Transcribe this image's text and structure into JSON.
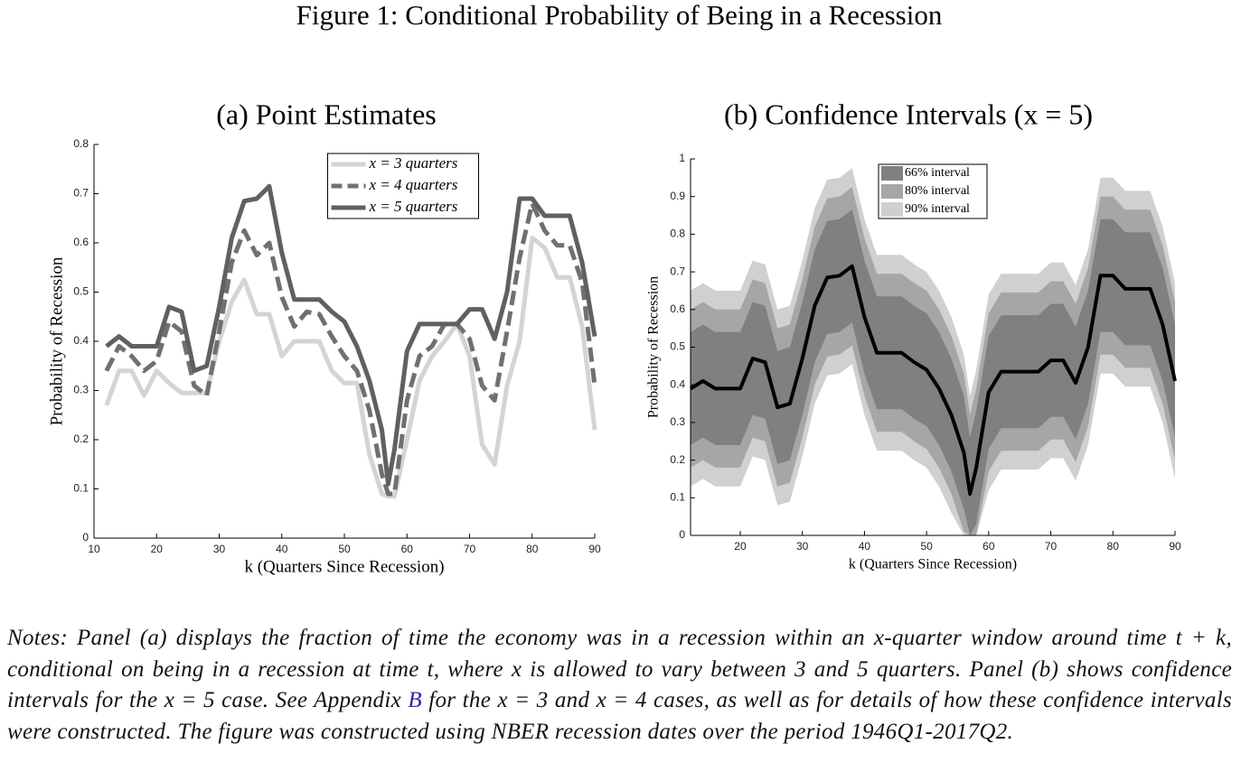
{
  "figure_title": "Figure 1: Conditional Probability of Being in a Recession",
  "chart_data": [
    {
      "type": "line",
      "title": "(a) Point Estimates",
      "xlabel": "k (Quarters Since Recession)",
      "ylabel": "Probability of Recession",
      "x": [
        12,
        14,
        16,
        18,
        20,
        22,
        24,
        26,
        28,
        30,
        32,
        34,
        36,
        38,
        40,
        42,
        44,
        46,
        48,
        50,
        52,
        54,
        56,
        57,
        58,
        60,
        62,
        64,
        66,
        68,
        70,
        72,
        74,
        76,
        78,
        80,
        82,
        84,
        86,
        88,
        90
      ],
      "xlim": [
        10,
        90
      ],
      "xticks": [
        10,
        20,
        30,
        40,
        50,
        60,
        70,
        80,
        90
      ],
      "ylim": [
        0,
        0.8
      ],
      "yticks": [
        0,
        0.1,
        0.2,
        0.3,
        0.4,
        0.5,
        0.6,
        0.7,
        0.8
      ],
      "legend": "upper center",
      "series": [
        {
          "name": "x = 3 quarters",
          "color": "#d4d4d4",
          "dashed": false,
          "values": [
            0.27,
            0.34,
            0.34,
            0.29,
            0.34,
            0.315,
            0.295,
            0.295,
            0.295,
            0.4,
            0.48,
            0.525,
            0.455,
            0.455,
            0.37,
            0.4,
            0.4,
            0.4,
            0.34,
            0.315,
            0.315,
            0.17,
            0.09,
            0.085,
            0.085,
            0.2,
            0.32,
            0.37,
            0.4,
            0.435,
            0.37,
            0.19,
            0.15,
            0.31,
            0.4,
            0.61,
            0.59,
            0.53,
            0.53,
            0.43,
            0.22
          ]
        },
        {
          "name": "x = 4 quarters",
          "color": "#707070",
          "dashed": true,
          "values": [
            0.34,
            0.39,
            0.37,
            0.34,
            0.36,
            0.44,
            0.42,
            0.31,
            0.29,
            0.42,
            0.56,
            0.625,
            0.575,
            0.6,
            0.49,
            0.43,
            0.46,
            0.455,
            0.41,
            0.37,
            0.34,
            0.26,
            0.13,
            0.09,
            0.09,
            0.28,
            0.37,
            0.39,
            0.435,
            0.435,
            0.405,
            0.31,
            0.28,
            0.42,
            0.57,
            0.68,
            0.625,
            0.595,
            0.595,
            0.52,
            0.31
          ]
        },
        {
          "name": "x = 5 quarters",
          "color": "#606060",
          "dashed": false,
          "values": [
            0.39,
            0.41,
            0.39,
            0.39,
            0.39,
            0.47,
            0.46,
            0.34,
            0.35,
            0.47,
            0.61,
            0.685,
            0.69,
            0.715,
            0.58,
            0.485,
            0.485,
            0.485,
            0.46,
            0.44,
            0.39,
            0.32,
            0.22,
            0.11,
            0.18,
            0.38,
            0.435,
            0.435,
            0.435,
            0.435,
            0.465,
            0.465,
            0.405,
            0.5,
            0.69,
            0.69,
            0.655,
            0.655,
            0.655,
            0.56,
            0.41
          ]
        }
      ]
    },
    {
      "type": "band",
      "title": "(b) Confidence Intervals (x = 5)",
      "xlabel": "k (Quarters Since Recession)",
      "ylabel": "Probability of Recession",
      "x": [
        12,
        14,
        16,
        18,
        20,
        22,
        24,
        26,
        28,
        30,
        32,
        34,
        36,
        38,
        40,
        42,
        44,
        46,
        48,
        50,
        52,
        54,
        56,
        57,
        58,
        60,
        62,
        64,
        66,
        68,
        70,
        72,
        74,
        76,
        78,
        80,
        82,
        84,
        86,
        88,
        90
      ],
      "xlim": [
        12,
        90
      ],
      "xticks": [
        20,
        30,
        40,
        50,
        60,
        70,
        80,
        90
      ],
      "ylim": [
        0,
        1
      ],
      "yticks": [
        0,
        0.1,
        0.2,
        0.3,
        0.4,
        0.5,
        0.6,
        0.7,
        0.8,
        0.9,
        1
      ],
      "legend": "upper left",
      "bands": [
        {
          "name": "66% interval",
          "color": "#808080",
          "lower": [
            0.24,
            0.26,
            0.24,
            0.24,
            0.24,
            0.32,
            0.31,
            0.19,
            0.2,
            0.32,
            0.46,
            0.535,
            0.54,
            0.565,
            0.43,
            0.335,
            0.335,
            0.335,
            0.31,
            0.29,
            0.24,
            0.17,
            0.07,
            0,
            0.03,
            0.23,
            0.285,
            0.285,
            0.285,
            0.285,
            0.315,
            0.315,
            0.255,
            0.35,
            0.54,
            0.54,
            0.505,
            0.505,
            0.505,
            0.41,
            0.26
          ],
          "upper": [
            0.54,
            0.56,
            0.54,
            0.54,
            0.54,
            0.62,
            0.61,
            0.49,
            0.5,
            0.62,
            0.76,
            0.835,
            0.84,
            0.865,
            0.73,
            0.635,
            0.635,
            0.635,
            0.61,
            0.59,
            0.54,
            0.47,
            0.37,
            0.26,
            0.33,
            0.53,
            0.585,
            0.585,
            0.585,
            0.585,
            0.615,
            0.615,
            0.555,
            0.65,
            0.84,
            0.84,
            0.805,
            0.805,
            0.805,
            0.71,
            0.56
          ]
        },
        {
          "name": "80% interval",
          "color": "#a6a6a6",
          "lower": [
            0.18,
            0.2,
            0.18,
            0.18,
            0.18,
            0.26,
            0.25,
            0.13,
            0.14,
            0.26,
            0.4,
            0.475,
            0.48,
            0.505,
            0.37,
            0.275,
            0.275,
            0.275,
            0.25,
            0.23,
            0.18,
            0.11,
            0.01,
            0,
            0,
            0.17,
            0.225,
            0.225,
            0.225,
            0.225,
            0.255,
            0.255,
            0.195,
            0.29,
            0.48,
            0.48,
            0.445,
            0.445,
            0.445,
            0.35,
            0.2
          ],
          "upper": [
            0.6,
            0.62,
            0.6,
            0.6,
            0.6,
            0.68,
            0.67,
            0.55,
            0.56,
            0.68,
            0.82,
            0.895,
            0.9,
            0.925,
            0.79,
            0.695,
            0.695,
            0.695,
            0.67,
            0.65,
            0.6,
            0.53,
            0.43,
            0.32,
            0.39,
            0.59,
            0.645,
            0.645,
            0.645,
            0.645,
            0.675,
            0.675,
            0.615,
            0.71,
            0.9,
            0.9,
            0.865,
            0.865,
            0.865,
            0.77,
            0.62
          ]
        },
        {
          "name": "90% interval",
          "color": "#d0d0d0",
          "lower": [
            0.13,
            0.15,
            0.13,
            0.13,
            0.13,
            0.21,
            0.2,
            0.08,
            0.09,
            0.21,
            0.35,
            0.425,
            0.43,
            0.455,
            0.32,
            0.225,
            0.225,
            0.225,
            0.2,
            0.18,
            0.13,
            0.06,
            0,
            0,
            0,
            0.12,
            0.175,
            0.175,
            0.175,
            0.175,
            0.205,
            0.205,
            0.145,
            0.24,
            0.43,
            0.43,
            0.395,
            0.395,
            0.395,
            0.3,
            0.15
          ],
          "upper": [
            0.65,
            0.67,
            0.65,
            0.65,
            0.65,
            0.73,
            0.72,
            0.6,
            0.61,
            0.73,
            0.87,
            0.945,
            0.95,
            0.975,
            0.84,
            0.745,
            0.745,
            0.745,
            0.72,
            0.7,
            0.65,
            0.58,
            0.48,
            0.37,
            0.44,
            0.64,
            0.695,
            0.695,
            0.695,
            0.695,
            0.725,
            0.725,
            0.665,
            0.76,
            0.95,
            0.95,
            0.915,
            0.915,
            0.915,
            0.82,
            0.67
          ]
        }
      ],
      "line": {
        "color": "#000000",
        "values": [
          0.39,
          0.41,
          0.39,
          0.39,
          0.39,
          0.47,
          0.46,
          0.34,
          0.35,
          0.47,
          0.61,
          0.685,
          0.69,
          0.715,
          0.58,
          0.485,
          0.485,
          0.485,
          0.46,
          0.44,
          0.39,
          0.32,
          0.22,
          0.11,
          0.18,
          0.38,
          0.435,
          0.435,
          0.435,
          0.435,
          0.465,
          0.465,
          0.405,
          0.5,
          0.69,
          0.69,
          0.655,
          0.655,
          0.655,
          0.56,
          0.41
        ]
      }
    }
  ],
  "notes": [
    "Notes: Panel (a) displays the fraction of time the economy was in a recession within an x-quarter window around time t + k, conditional on being in a recession at time t, where x is allowed to vary between 3 and 5 quarters. Panel (b) shows confidence intervals for the x = 5 case. See Appendix ",
    "B",
    " for the x = 3 and x = 4 cases, as well as for details of how these confidence intervals were constructed. The figure was constructed using NBER recession dates over the period 1946Q1-2017Q2."
  ]
}
